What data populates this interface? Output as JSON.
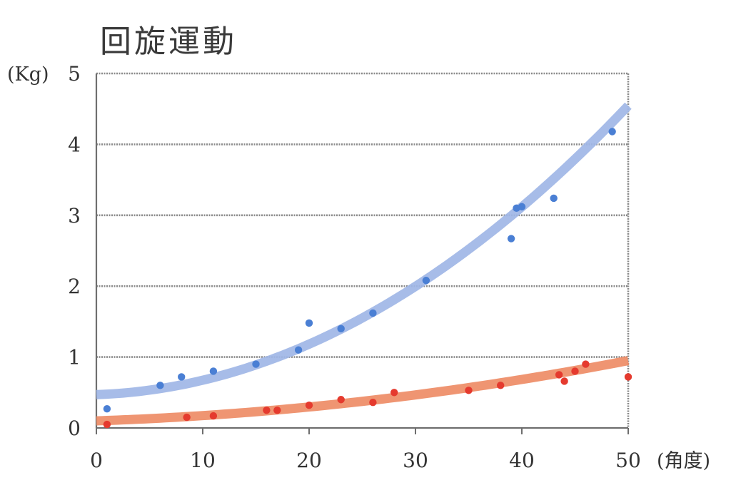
{
  "chart_data": {
    "type": "scatter",
    "title": "回旋運動",
    "ylabel": "(Kg)",
    "xlabel": "(角度)",
    "xlim": [
      0,
      50
    ],
    "ylim": [
      0,
      5
    ],
    "x_ticks": [
      0,
      10,
      20,
      30,
      40,
      50
    ],
    "y_ticks": [
      0,
      1,
      2,
      3,
      4,
      5
    ],
    "grid": true,
    "legend": "none",
    "series": [
      {
        "color": "#4a7fd4",
        "trend_color": "#9fb6e6",
        "trend_coeffs": [
          0.47,
          0.005,
          0.00153
        ],
        "points": [
          [
            1,
            0.27
          ],
          [
            6,
            0.6
          ],
          [
            8,
            0.72
          ],
          [
            11,
            0.8
          ],
          [
            15,
            0.9
          ],
          [
            19,
            1.1
          ],
          [
            20,
            1.48
          ],
          [
            23,
            1.4
          ],
          [
            26,
            1.62
          ],
          [
            31,
            2.08
          ],
          [
            39,
            2.67
          ],
          [
            39.5,
            3.1
          ],
          [
            40,
            3.12
          ],
          [
            43,
            3.24
          ],
          [
            48.5,
            4.18
          ]
        ]
      },
      {
        "color": "#e53a2e",
        "trend_color": "#ee8c66",
        "trend_coeffs": [
          0.1,
          0.005,
          0.00024
        ],
        "points": [
          [
            1,
            0.05
          ],
          [
            8.5,
            0.15
          ],
          [
            11,
            0.17
          ],
          [
            16,
            0.25
          ],
          [
            17,
            0.25
          ],
          [
            20,
            0.32
          ],
          [
            23,
            0.4
          ],
          [
            26,
            0.36
          ],
          [
            28,
            0.5
          ],
          [
            35,
            0.53
          ],
          [
            38,
            0.6
          ],
          [
            43.5,
            0.75
          ],
          [
            44,
            0.66
          ],
          [
            45,
            0.8
          ],
          [
            46,
            0.9
          ],
          [
            50,
            0.72
          ]
        ]
      }
    ]
  }
}
